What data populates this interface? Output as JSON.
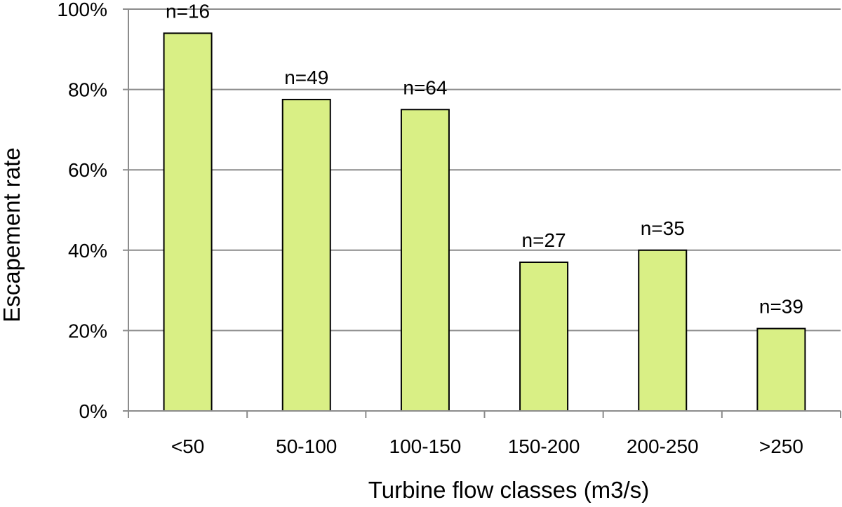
{
  "chart_data": {
    "type": "bar",
    "categories": [
      "<50",
      "50-100",
      "100-150",
      "150-200",
      "200-250",
      ">250"
    ],
    "values": [
      0.94,
      0.775,
      0.75,
      0.37,
      0.4,
      0.205
    ],
    "data_labels": [
      "n=16",
      "n=49",
      "n=64",
      "n=27",
      "n=35",
      "n=39"
    ],
    "xlabel": "Turbine flow classes (m3/s)",
    "ylabel": "Escapement rate",
    "ylim": [
      0,
      1
    ],
    "yticks": [
      0,
      0.2,
      0.4,
      0.6,
      0.8,
      1.0
    ],
    "ytick_labels": [
      "0%",
      "20%",
      "40%",
      "60%",
      "80%",
      "100%"
    ],
    "grid": true,
    "legend": "none",
    "colors": {
      "bar_fill": "#d9ef85",
      "bar_stroke": "#000000",
      "grid": "#8c8c8c"
    }
  }
}
